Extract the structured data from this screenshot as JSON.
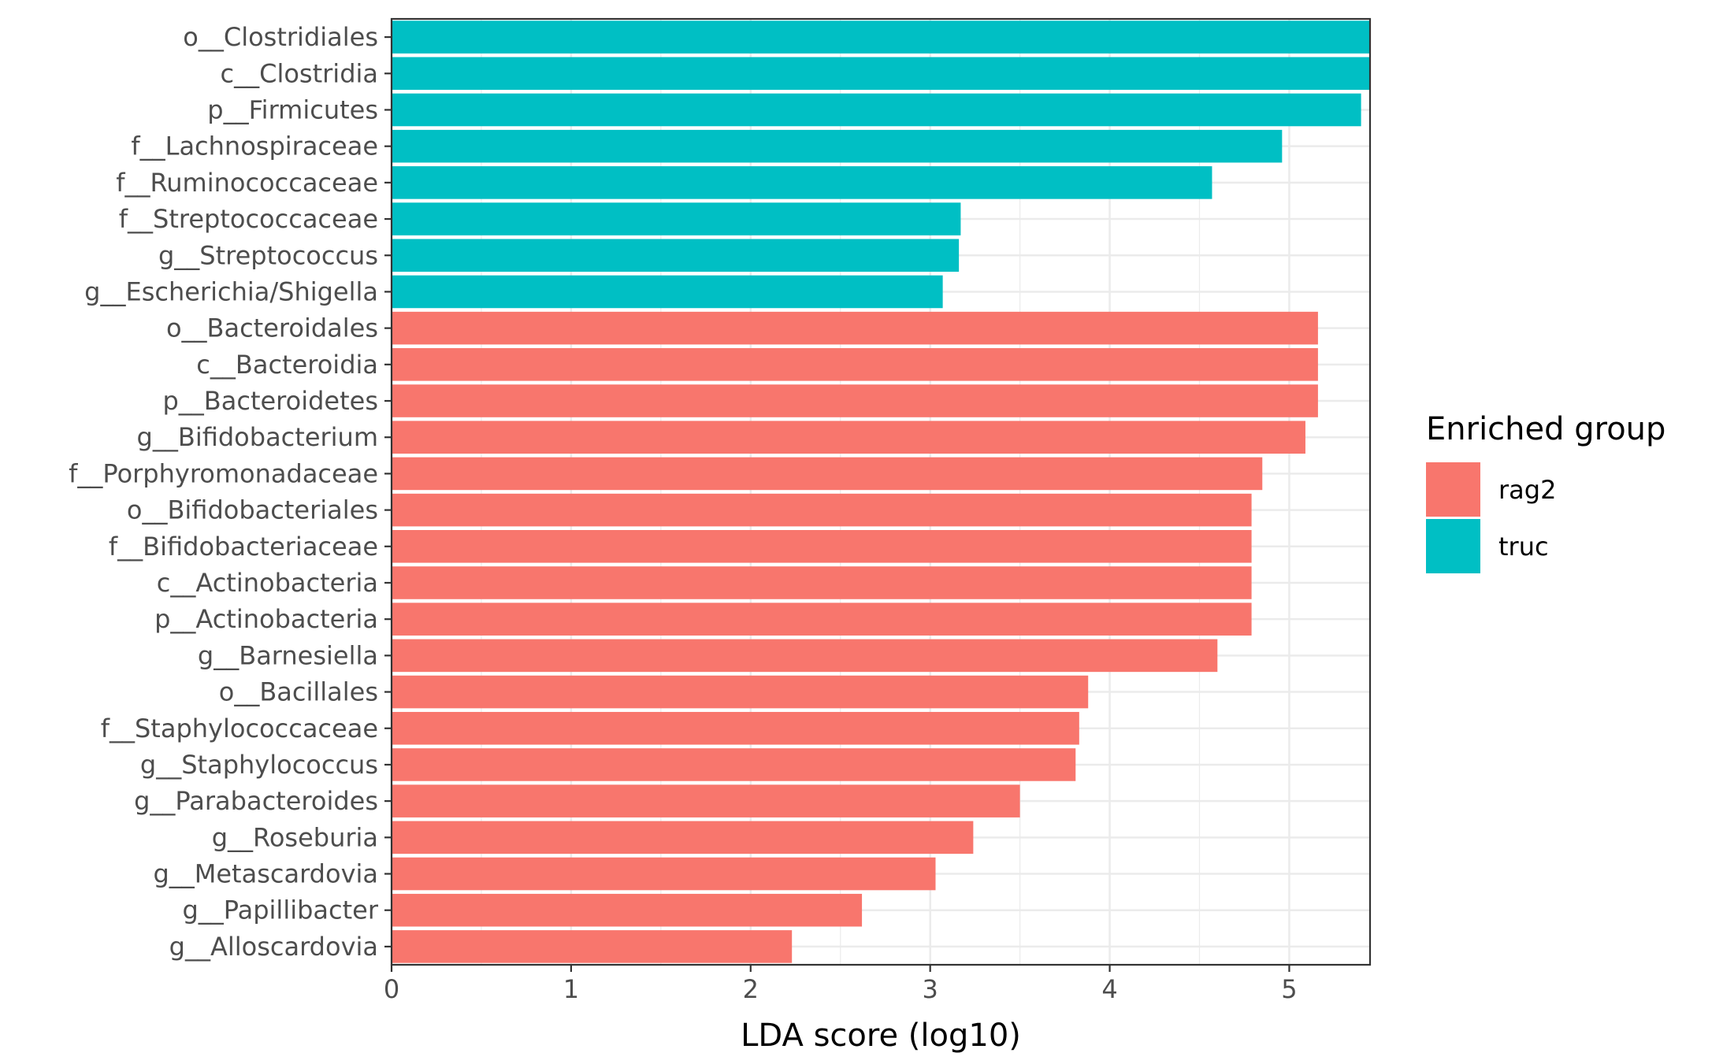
{
  "chart_data": {
    "type": "bar",
    "orientation": "horizontal",
    "xlabel": "LDA score (log10)",
    "ylabel": "",
    "xlim": [
      0,
      5.45
    ],
    "xticks": [
      0,
      1,
      2,
      3,
      4,
      5
    ],
    "grid": true,
    "legend": {
      "title": "Enriched group",
      "position": "right",
      "entries": [
        {
          "name": "rag2",
          "color": "#F8766D"
        },
        {
          "name": "truc",
          "color": "#00BFC4"
        }
      ]
    },
    "bars": [
      {
        "label": "o__Clostridiales",
        "value": 5.45,
        "group": "truc"
      },
      {
        "label": "c__Clostridia",
        "value": 5.45,
        "group": "truc"
      },
      {
        "label": "p__Firmicutes",
        "value": 5.4,
        "group": "truc"
      },
      {
        "label": "f__Lachnospiraceae",
        "value": 4.96,
        "group": "truc"
      },
      {
        "label": "f__Ruminococcaceae",
        "value": 4.57,
        "group": "truc"
      },
      {
        "label": "f__Streptococcaceae",
        "value": 3.17,
        "group": "truc"
      },
      {
        "label": "g__Streptococcus",
        "value": 3.16,
        "group": "truc"
      },
      {
        "label": "g__Escherichia/Shigella",
        "value": 3.07,
        "group": "truc"
      },
      {
        "label": "o__Bacteroidales",
        "value": 5.16,
        "group": "rag2"
      },
      {
        "label": "c__Bacteroidia",
        "value": 5.16,
        "group": "rag2"
      },
      {
        "label": "p__Bacteroidetes",
        "value": 5.16,
        "group": "rag2"
      },
      {
        "label": "g__Bifidobacterium",
        "value": 5.09,
        "group": "rag2"
      },
      {
        "label": "f__Porphyromonadaceae",
        "value": 4.85,
        "group": "rag2"
      },
      {
        "label": "o__Bifidobacteriales",
        "value": 4.79,
        "group": "rag2"
      },
      {
        "label": "f__Bifidobacteriaceae",
        "value": 4.79,
        "group": "rag2"
      },
      {
        "label": "c__Actinobacteria",
        "value": 4.79,
        "group": "rag2"
      },
      {
        "label": "p__Actinobacteria",
        "value": 4.79,
        "group": "rag2"
      },
      {
        "label": "g__Barnesiella",
        "value": 4.6,
        "group": "rag2"
      },
      {
        "label": "o__Bacillales",
        "value": 3.88,
        "group": "rag2"
      },
      {
        "label": "f__Staphylococcaceae",
        "value": 3.83,
        "group": "rag2"
      },
      {
        "label": "g__Staphylococcus",
        "value": 3.81,
        "group": "rag2"
      },
      {
        "label": "g__Parabacteroides",
        "value": 3.5,
        "group": "rag2"
      },
      {
        "label": "g__Roseburia",
        "value": 3.24,
        "group": "rag2"
      },
      {
        "label": "g__Metascardovia",
        "value": 3.03,
        "group": "rag2"
      },
      {
        "label": "g__Papillibacter",
        "value": 2.62,
        "group": "rag2"
      },
      {
        "label": "g__Alloscardovia",
        "value": 2.23,
        "group": "rag2"
      }
    ]
  }
}
